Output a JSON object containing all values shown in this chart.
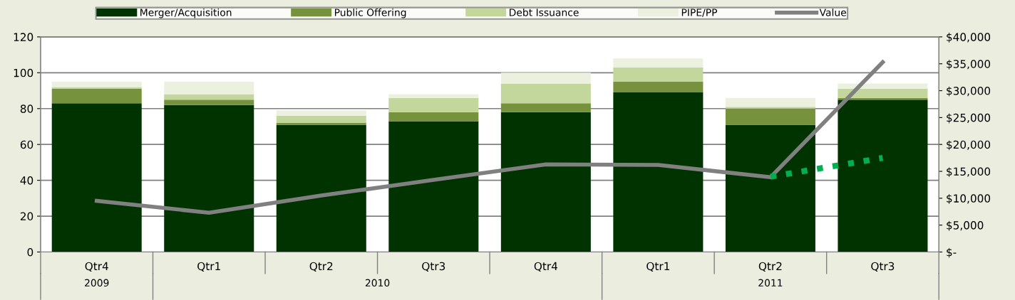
{
  "chart_data": {
    "type": "bar",
    "stacked": true,
    "categories": [
      "Qtr4",
      "Qtr1",
      "Qtr2",
      "Qtr3",
      "Qtr4",
      "Qtr1",
      "Qtr2",
      "Qtr3"
    ],
    "series": [
      {
        "name": "Merger/Acquisition",
        "color": "#003300",
        "values": [
          83,
          82,
          71,
          73,
          78,
          89,
          71,
          85
        ]
      },
      {
        "name": "Public Offering",
        "color": "#76923c",
        "values": [
          8,
          3,
          1,
          5,
          5,
          6,
          9,
          1
        ]
      },
      {
        "name": "Debt Issuance",
        "color": "#c3d69b",
        "values": [
          1,
          3,
          4,
          8,
          11,
          8,
          1,
          5
        ]
      },
      {
        "name": "PIPE/PP",
        "color": "#ebf1de",
        "values": [
          3,
          7,
          3,
          2,
          6,
          5,
          5,
          3
        ]
      },
      {
        "name": "Value",
        "type": "line",
        "axis": "y2",
        "color": "#808080",
        "values": [
          9500,
          7300,
          10500,
          13400,
          16300,
          16200,
          13900,
          35300
        ]
      },
      {
        "type": "line",
        "axis": "y2",
        "color": "#00b050",
        "line_style": "dotted",
        "values": [
          null,
          null,
          null,
          null,
          null,
          null,
          14000,
          17500
        ]
      }
    ],
    "ylim": [
      0,
      120
    ],
    "yticks": [
      0,
      20,
      40,
      60,
      80,
      100,
      120
    ],
    "y2lim": [
      0,
      40000
    ],
    "y2ticks": [
      {
        "value": 0,
        "label": "$-"
      },
      {
        "value": 5000,
        "label": "$5,000"
      },
      {
        "value": 10000,
        "label": "$10,000"
      },
      {
        "value": 15000,
        "label": "$15,000"
      },
      {
        "value": 20000,
        "label": "$20,000"
      },
      {
        "value": 25000,
        "label": "$25,000"
      },
      {
        "value": 30000,
        "label": "$30,000"
      },
      {
        "value": 35000,
        "label": "$35,000"
      },
      {
        "value": 40000,
        "label": "$40,000"
      }
    ],
    "annotations": [
      "2009",
      "2010",
      "2011"
    ],
    "grid": "y",
    "legend": "top"
  }
}
